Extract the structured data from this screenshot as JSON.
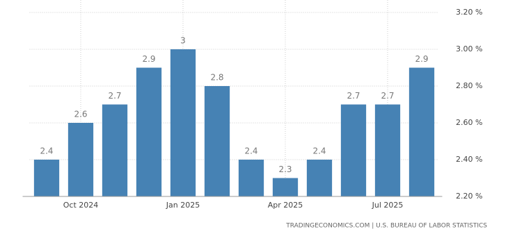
{
  "chart_data": {
    "type": "bar",
    "categories": [
      null,
      "Oct 2024",
      null,
      null,
      "Jan 2025",
      null,
      null,
      "Apr 2025",
      null,
      null,
      "Jul 2025",
      null
    ],
    "values": [
      2.4,
      2.6,
      2.7,
      2.9,
      3,
      2.8,
      2.4,
      2.3,
      2.4,
      2.7,
      2.7,
      2.9
    ],
    "color": "#4682b4",
    "ylim": [
      2.2,
      3.2
    ],
    "yticks": [
      {
        "value": 2.2,
        "label": "2.20 %"
      },
      {
        "value": 2.4,
        "label": "2.40 %"
      },
      {
        "value": 2.6,
        "label": "2.60 %"
      },
      {
        "value": 2.8,
        "label": "2.80 %"
      },
      {
        "value": 3.0,
        "label": "3.00 %"
      },
      {
        "value": 3.2,
        "label": "3.20 %"
      }
    ],
    "grid": true,
    "source": "TRADINGECONOMICS.COM | U.S. BUREAU OF LABOR STATISTICS"
  }
}
